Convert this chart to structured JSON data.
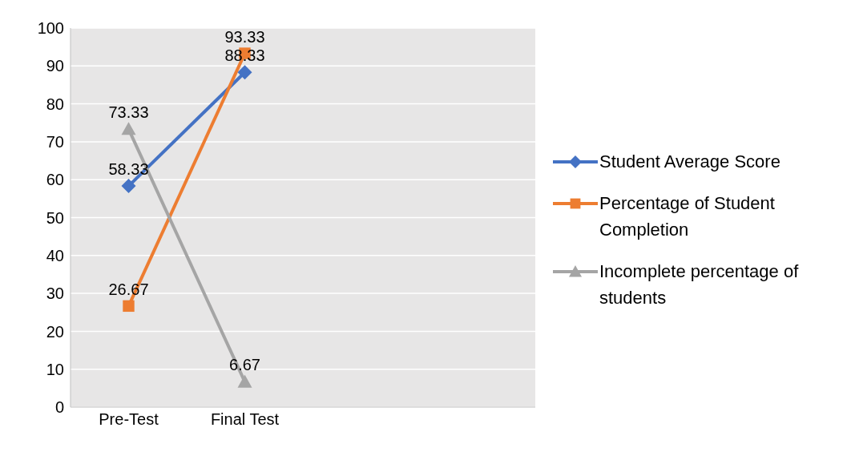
{
  "chart_data": {
    "type": "line",
    "categories": [
      "Pre-Test",
      "Final Test",
      null,
      null
    ],
    "series": [
      {
        "name": "Student Average Score",
        "color": "#4472c4",
        "marker": "diamond",
        "values": [
          58.33,
          88.33,
          null,
          null
        ]
      },
      {
        "name": "Percentage of Student Completion",
        "color": "#ed7d31",
        "marker": "square",
        "values": [
          26.67,
          93.33,
          null,
          null
        ]
      },
      {
        "name": "Incomplete percentage of students",
        "color": "#a5a5a5",
        "marker": "triangle",
        "values": [
          73.33,
          6.67,
          null,
          null
        ]
      }
    ],
    "ylim": [
      0,
      100
    ],
    "yticks": [
      0,
      10,
      20,
      30,
      40,
      50,
      60,
      70,
      80,
      90,
      100
    ],
    "grid": "y",
    "legend": "right",
    "data_labels": true
  }
}
